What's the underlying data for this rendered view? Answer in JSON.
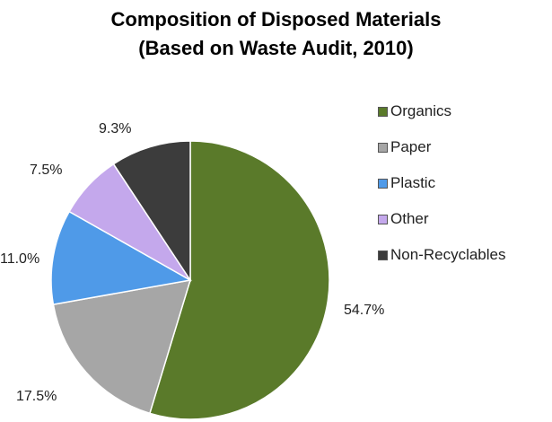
{
  "chart_data": {
    "type": "pie",
    "title": "Composition of Disposed Materials",
    "subtitle": "(Based on Waste Audit, 2010)",
    "categories": [
      "Organics",
      "Paper",
      "Plastic",
      "Other",
      "Non-Recyclables"
    ],
    "values": [
      54.7,
      17.5,
      11.0,
      7.5,
      9.3
    ],
    "labels": [
      "54.7%",
      "17.5%",
      "11.0%",
      "7.5%",
      "9.3%"
    ],
    "colors": [
      "#5a7a2a",
      "#a6a6a6",
      "#4f9ae8",
      "#c4a8ec",
      "#3c3c3c"
    ],
    "legend_position": "right"
  }
}
